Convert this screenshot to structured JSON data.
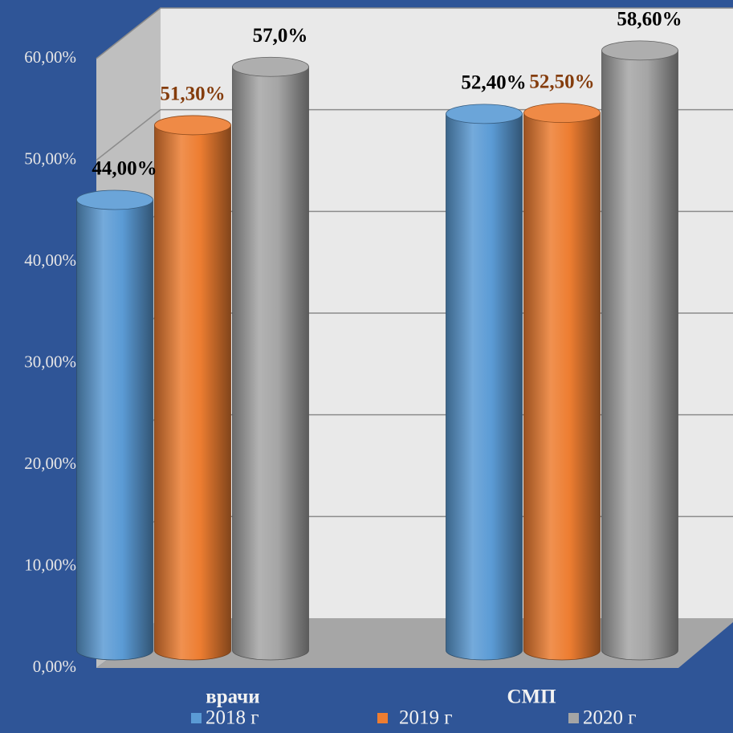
{
  "chart_data": {
    "type": "bar",
    "categories": [
      "врачи",
      "СМП"
    ],
    "series": [
      {
        "name": "2018 г",
        "color": "#5b9bd5",
        "values": [
          44.0,
          52.4
        ],
        "value_labels": [
          "44,00%",
          "52,40%"
        ]
      },
      {
        "name": "2019 г",
        "color": "#ed7d31",
        "values": [
          51.3,
          52.5
        ],
        "value_labels": [
          "51,30%",
          "52,50%"
        ]
      },
      {
        "name": "2020 г",
        "color": "#a5a5a5",
        "values": [
          57.0,
          58.6
        ],
        "value_labels": [
          "57,0%",
          "58,60%"
        ]
      }
    ],
    "ylim": [
      0,
      60
    ],
    "yticks": [
      {
        "value": 0,
        "label": "0,00%"
      },
      {
        "value": 10,
        "label": "10,00%"
      },
      {
        "value": 20,
        "label": "20,00%"
      },
      {
        "value": 30,
        "label": "30,00%"
      },
      {
        "value": 40,
        "label": "40,00%"
      },
      {
        "value": 50,
        "label": "50,00%"
      },
      {
        "value": 60,
        "label": "60,00%"
      }
    ],
    "grid": true,
    "legend": "bottom"
  }
}
